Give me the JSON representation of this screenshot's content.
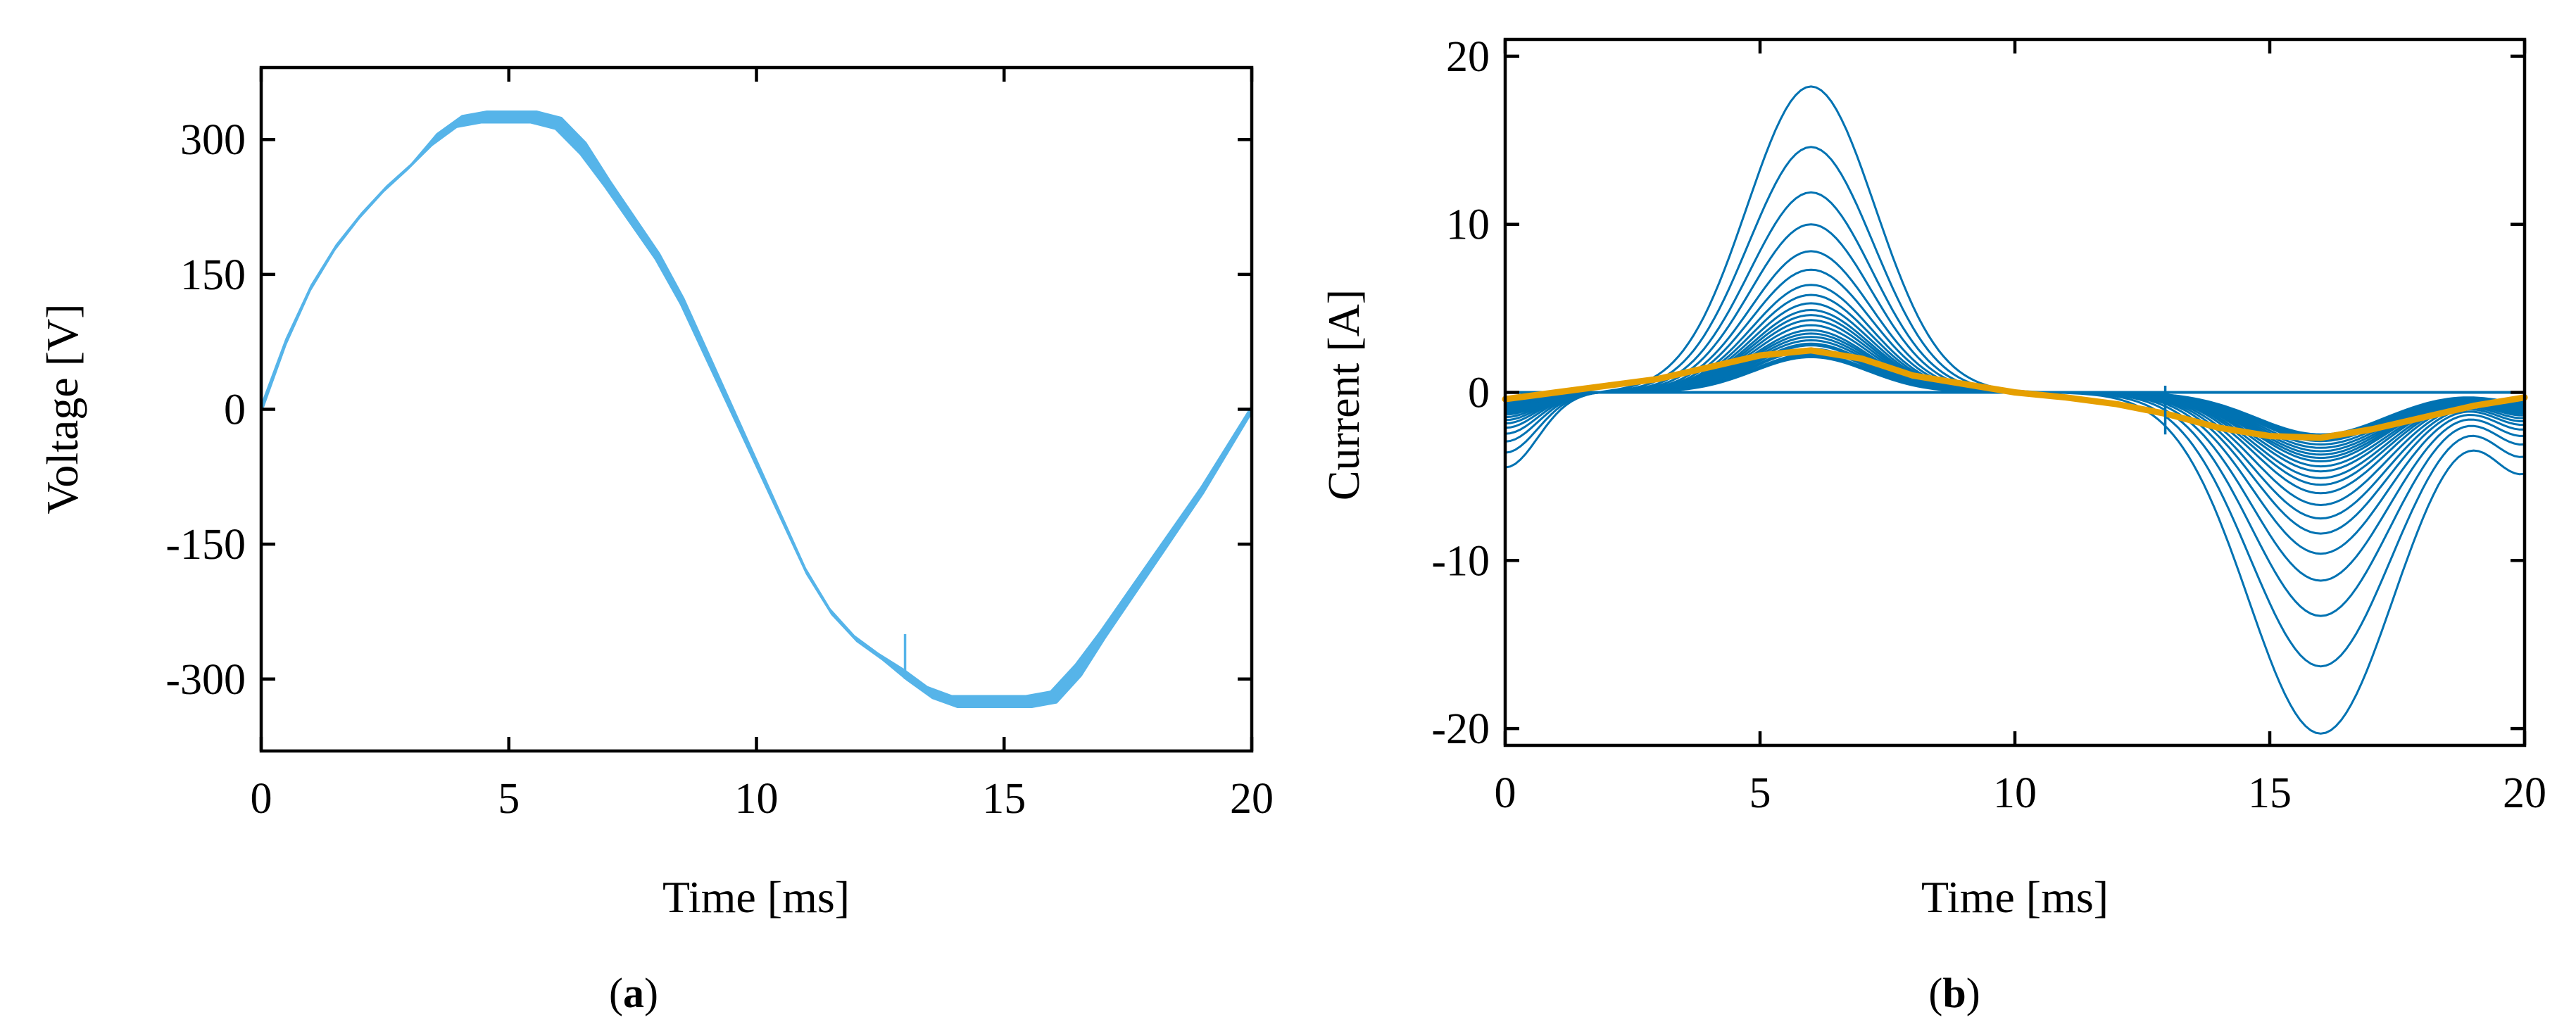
{
  "figure": {
    "caption_a_open": "(",
    "caption_a_letter": "a",
    "caption_a_close": ")",
    "caption_b_open": "(",
    "caption_b_letter": "b",
    "caption_b_close": ")"
  },
  "chart_data": [
    {
      "id": "a",
      "type": "line",
      "title": "",
      "xlabel": "Time [ms]",
      "ylabel": "Voltage [V]",
      "xlim": [
        0,
        20
      ],
      "ylim": [
        -380,
        380
      ],
      "xticks": [
        0,
        5,
        10,
        15,
        20
      ],
      "xtick_labels": [
        "0",
        "5",
        "10",
        "15",
        "20"
      ],
      "yticks": [
        -300,
        -150,
        0,
        150,
        300
      ],
      "ytick_labels": [
        "-300",
        "-150",
        "0",
        "150",
        "300"
      ],
      "grid": false,
      "series_color": "#56B4E9",
      "trace_count": 12,
      "description_series": "Overlaid voltage cycles: sine-like waveform with flattened (clipped) crests at about +325 V near 4–6 ms and -325 V near 14–16 ms; small spike near 13 ms",
      "series": [
        {
          "name": "voltage",
          "x": [
            0,
            0.5,
            1,
            1.5,
            2,
            2.5,
            3,
            3.5,
            4,
            4.5,
            5,
            5.5,
            6,
            6.5,
            7,
            7.5,
            8,
            8.5,
            9,
            9.5,
            10,
            10.5,
            11,
            11.5,
            12,
            12.5,
            13,
            13.5,
            14,
            14.5,
            15,
            15.5,
            16,
            16.5,
            17,
            17.5,
            18,
            18.5,
            19,
            19.5,
            20
          ],
          "y": [
            0,
            75,
            135,
            180,
            215,
            245,
            270,
            300,
            320,
            325,
            325,
            325,
            318,
            290,
            250,
            210,
            170,
            120,
            60,
            0,
            -60,
            -120,
            -180,
            -225,
            -255,
            -275,
            -295,
            -315,
            -325,
            -325,
            -325,
            -325,
            -320,
            -290,
            -250,
            -210,
            -170,
            -130,
            -90,
            -45,
            0
          ]
        }
      ],
      "annotations": [
        {
          "type": "spike",
          "x": 13,
          "y_from": -250,
          "y_to": -300
        }
      ]
    },
    {
      "id": "b",
      "type": "line",
      "title": "",
      "xlabel": "Time [ms]",
      "ylabel": "Current [A]",
      "xlim": [
        0,
        20
      ],
      "ylim": [
        -21,
        21
      ],
      "xticks": [
        0,
        5,
        10,
        15,
        20
      ],
      "xtick_labels": [
        "0",
        "5",
        "10",
        "15",
        "20"
      ],
      "yticks": [
        -20,
        -10,
        0,
        10,
        20
      ],
      "ytick_labels": [
        "-20",
        "-10",
        "0",
        "10",
        "20"
      ],
      "grid": false,
      "family_color": "#0072B2",
      "mean_color": "#E69F00",
      "description_series": "Family of current waveforms: positive lobe peaking near 6 ms and negative lobe near 16 ms, with amplitudes ranging from about 2 A up to 18 A (positive) / 20 A (negative); one flat zero trace; bold orange mean curve",
      "family_positive_peaks": [
        18.2,
        14.6,
        11.9,
        10.0,
        8.4,
        7.3,
        6.4,
        5.8,
        5.3,
        4.9,
        4.6,
        4.3,
        4.0,
        3.7,
        3.5,
        3.3,
        3.1,
        2.9,
        2.8,
        2.6,
        2.5,
        2.3,
        2.2,
        2.1
      ],
      "family_negative_peaks": [
        -20.3,
        -16.3,
        -13.3,
        -11.2,
        -9.6,
        -8.4,
        -7.5,
        -6.7,
        -6.0,
        -5.5,
        -5.1,
        -4.7,
        -4.4,
        -4.1,
        -3.9,
        -3.7,
        -3.5,
        -3.3,
        -3.1,
        -2.9,
        -2.8,
        -2.7,
        -2.6,
        -2.5
      ],
      "series": [
        {
          "name": "mean",
          "x": [
            0,
            1,
            2,
            3,
            4,
            5,
            6,
            7,
            8,
            9,
            10,
            11,
            12,
            13,
            14,
            15,
            16,
            17,
            18,
            19,
            20
          ],
          "y": [
            -0.4,
            0.0,
            0.4,
            0.8,
            1.5,
            2.2,
            2.5,
            2.0,
            1.0,
            0.5,
            0.0,
            -0.3,
            -0.7,
            -1.3,
            -2.1,
            -2.6,
            -2.7,
            -2.2,
            -1.5,
            -0.8,
            -0.3
          ]
        },
        {
          "name": "zero-trace",
          "x": [
            0,
            20
          ],
          "y": [
            0,
            0
          ]
        }
      ],
      "annotations": [
        {
          "type": "spike",
          "x": 12.95,
          "y_from": 0.4,
          "y_to": -2.5
        }
      ]
    }
  ]
}
